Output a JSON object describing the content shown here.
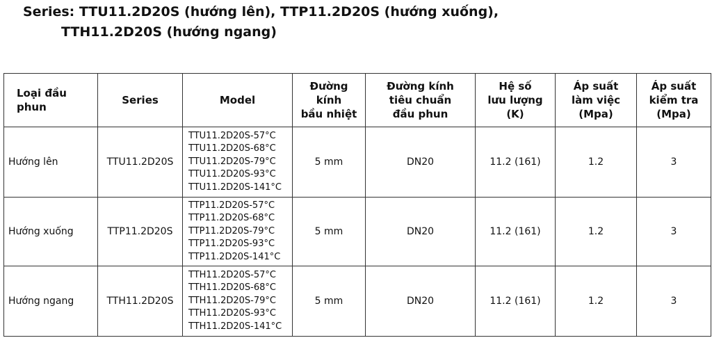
{
  "title": [
    "Series: TTU11.2D20S (hướng lên), TTP11.2D20S (hướng xuống),",
    "TTH11.2D20S (hướng ngang)"
  ],
  "table": {
    "headers": [
      [
        "Loại đầu",
        "phun"
      ],
      [
        "Series"
      ],
      [
        "Model"
      ],
      [
        "Đường",
        "kính",
        "bầu nhiệt"
      ],
      [
        "Đường kính",
        "tiêu chuẩn",
        "đầu phun"
      ],
      [
        "Hệ số",
        "lưu lượng",
        "(K)"
      ],
      [
        "Áp suất",
        "làm việc",
        "(Mpa)"
      ],
      [
        "Áp suất",
        "kiểm tra",
        "(Mpa)"
      ]
    ],
    "rows": [
      [
        "Hướng lên",
        "TTU11.2D20S",
        [
          "TTU11.2D20S-57°C",
          "TTU11.2D20S-68°C",
          "TTU11.2D20S-79°C",
          "TTU11.2D20S-93°C",
          "TTU11.2D20S-141°C"
        ],
        "5 mm",
        "DN20",
        "11.2 (161)",
        "1.2",
        "3"
      ],
      [
        "Hướng xuống",
        "TTP11.2D20S",
        [
          "TTP11.2D20S-57°C",
          "TTP11.2D20S-68°C",
          "TTP11.2D20S-79°C",
          "TTP11.2D20S-93°C",
          "TTP11.2D20S-141°C"
        ],
        "5 mm",
        "DN20",
        "11.2 (161)",
        "1.2",
        "3"
      ],
      [
        "Hướng ngang",
        "TTH11.2D20S",
        [
          "TTH11.2D20S-57°C",
          "TTH11.2D20S-68°C",
          "TTH11.2D20S-79°C",
          "TTH11.2D20S-93°C",
          "TTH11.2D20S-141°C"
        ],
        "5 mm",
        "DN20",
        "11.2 (161)",
        "1.2",
        "3"
      ]
    ]
  }
}
